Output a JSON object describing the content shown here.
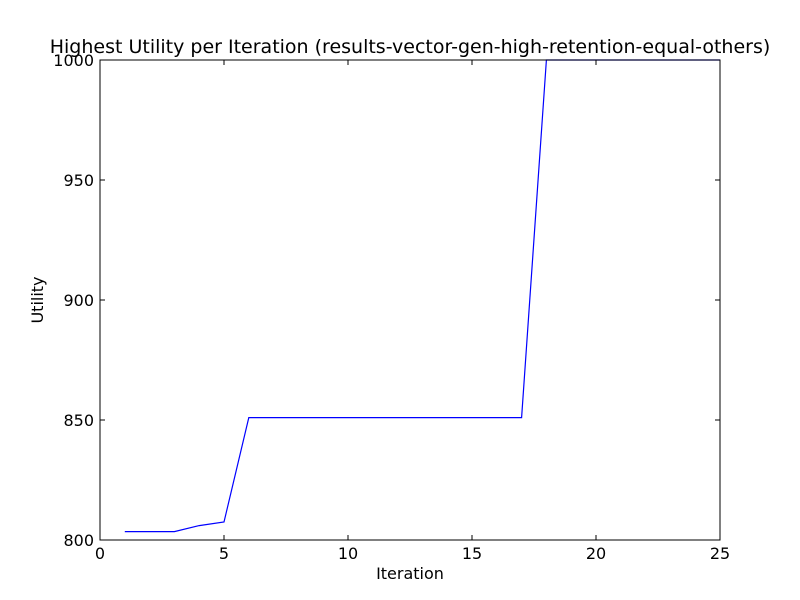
{
  "chart_data": {
    "type": "line",
    "title": "Highest Utility per Iteration (results-vector-gen-high-retention-equal-others)",
    "xlabel": "Iteration",
    "ylabel": "Utility",
    "xlim": [
      0,
      25
    ],
    "ylim": [
      800,
      1000
    ],
    "xticks": [
      0,
      5,
      10,
      15,
      20,
      25
    ],
    "yticks": [
      800,
      850,
      900,
      950,
      1000
    ],
    "grid": false,
    "line_color": "#0000ff",
    "series": [
      {
        "x": [
          1,
          2,
          3,
          4,
          5,
          6,
          7,
          8,
          9,
          10,
          11,
          12,
          13,
          14,
          15,
          16,
          17,
          18,
          19,
          20,
          21,
          22,
          23,
          24,
          25
        ],
        "values": [
          803.5,
          803.5,
          803.5,
          806,
          807.5,
          851,
          851,
          851,
          851,
          851,
          851,
          851,
          851,
          851,
          851,
          851,
          851,
          1000,
          1000,
          1000,
          1000,
          1000,
          1000,
          1000,
          1000
        ]
      }
    ]
  }
}
